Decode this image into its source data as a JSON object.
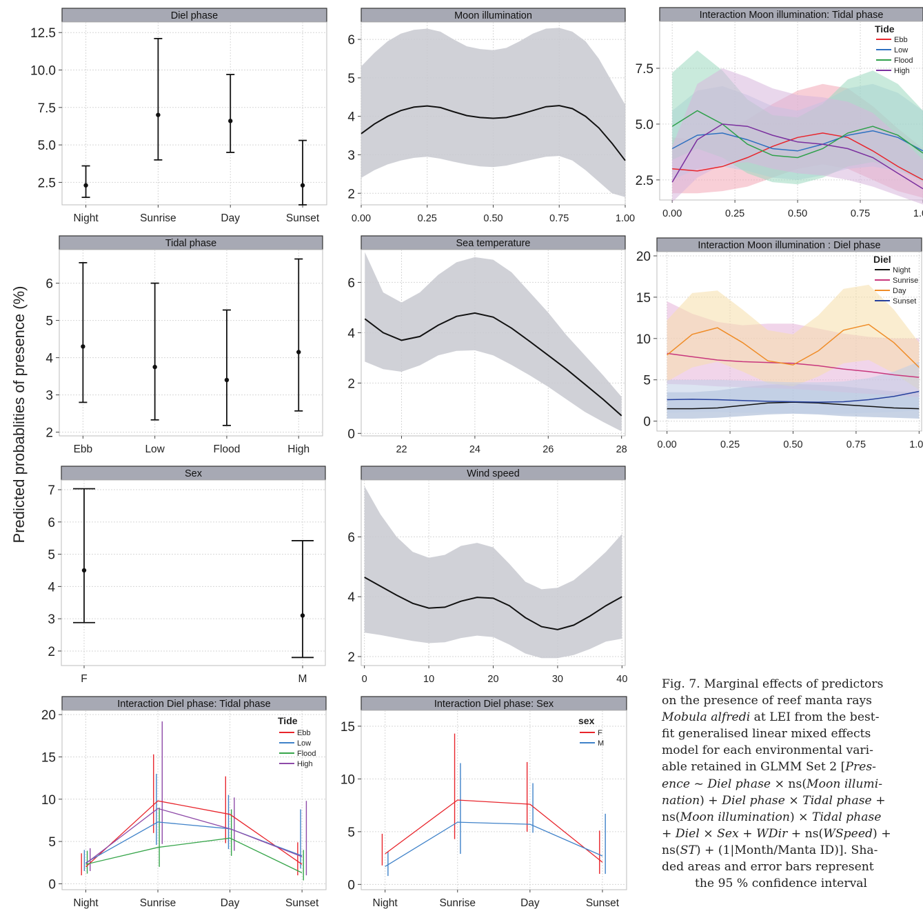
{
  "y_axis_label": "Predicted probablities of presence (%)",
  "caption_lines": [
    {
      "html": "Fig. 7. Marginal effects of predictors"
    },
    {
      "html": "on the presence of reef manta rays"
    },
    {
      "html": "<i>Mobula alfredi</i> at LEI from the best-"
    },
    {
      "html": "fit generalised linear mixed effects"
    },
    {
      "html": "model for each environmental vari-"
    },
    {
      "html": "able retained in GLMM Set 2 [<i>Pres-</i>"
    },
    {
      "html": "<i>ence</i> ~ <i>Diel phase</i> × ns(<i>Moon illumi-</i>"
    },
    {
      "html": "<i>nation</i>) + <i>Diel phase</i> × <i>Tidal phase</i> +"
    },
    {
      "html": "ns(<i>Moon illumination</i>) × <i>Tidal phase</i>"
    },
    {
      "html": "+ <i>Diel</i> × <i>Sex</i> + <i>WDir</i> + ns(<i>WSpeed</i>) +"
    },
    {
      "html": "ns(<i>ST</i>) + (1|Month/Manta ID)]. Sha-"
    },
    {
      "html": "ded areas and error bars represent"
    },
    {
      "html": "the 95 % confidence interval",
      "last": true
    }
  ],
  "chart_data": [
    {
      "id": "diel",
      "type": "errorbar",
      "title": "Diel phase",
      "categories": [
        "Night",
        "Sunrise",
        "Day",
        "Sunset"
      ],
      "values": [
        2.3,
        7.0,
        6.6,
        2.3
      ],
      "lower": [
        1.5,
        4.0,
        4.5,
        1.0
      ],
      "upper": [
        3.6,
        12.1,
        9.7,
        5.3
      ],
      "ylim": [
        1.0,
        13.2
      ],
      "yticks": [
        2.5,
        5.0,
        7.5,
        10.0,
        12.5
      ]
    },
    {
      "id": "moon",
      "type": "line",
      "title": "Moon illumination",
      "x": [
        0.0,
        0.05,
        0.1,
        0.15,
        0.2,
        0.25,
        0.3,
        0.35,
        0.4,
        0.45,
        0.5,
        0.55,
        0.6,
        0.65,
        0.7,
        0.75,
        0.8,
        0.85,
        0.9,
        0.95,
        1.0
      ],
      "y": [
        3.55,
        3.8,
        4.0,
        4.15,
        4.24,
        4.27,
        4.23,
        4.12,
        4.02,
        3.97,
        3.95,
        3.97,
        4.05,
        4.15,
        4.25,
        4.28,
        4.2,
        4.0,
        3.7,
        3.3,
        2.85
      ],
      "lower": [
        2.4,
        2.6,
        2.75,
        2.85,
        2.92,
        2.95,
        2.9,
        2.82,
        2.75,
        2.7,
        2.68,
        2.72,
        2.8,
        2.88,
        2.95,
        2.97,
        2.85,
        2.6,
        2.3,
        2.0,
        1.9
      ],
      "upper": [
        5.3,
        5.65,
        5.95,
        6.15,
        6.25,
        6.28,
        6.2,
        6.0,
        5.82,
        5.75,
        5.72,
        5.78,
        5.95,
        6.15,
        6.28,
        6.3,
        6.2,
        5.95,
        5.5,
        4.9,
        4.3
      ],
      "xlim": [
        0.0,
        1.0
      ],
      "ylim": [
        1.7,
        6.45
      ],
      "xticks": [
        0.0,
        0.25,
        0.5,
        0.75,
        1.0
      ],
      "xticklabels": [
        "0.00",
        "0.25",
        "0.50",
        "0.75",
        "1.00"
      ],
      "yticks": [
        2,
        3,
        4,
        5,
        6
      ]
    },
    {
      "id": "intmoontide",
      "type": "line",
      "title": "Interaction Moon illumination: Tidal phase",
      "legend_title": "Tide",
      "xlim": [
        -0.05,
        1.0
      ],
      "ylim": [
        1.6,
        9.6
      ],
      "xticks": [
        0.0,
        0.25,
        0.5,
        0.75,
        1.0
      ],
      "xticklabels": [
        "0.00",
        "0.25",
        "0.50",
        "0.75",
        "1.00"
      ],
      "yticks": [
        2.5,
        5.0,
        7.5
      ],
      "x": [
        0.0,
        0.1,
        0.2,
        0.3,
        0.4,
        0.5,
        0.6,
        0.7,
        0.8,
        0.9,
        1.0
      ],
      "series": [
        {
          "name": "Ebb",
          "color": "#e8242b",
          "band": "#f2a8b7",
          "y": [
            3.0,
            2.9,
            3.1,
            3.5,
            4.0,
            4.4,
            4.6,
            4.4,
            3.8,
            3.1,
            2.5
          ],
          "lower": [
            1.9,
            1.9,
            2.0,
            2.2,
            2.6,
            3.0,
            3.2,
            3.0,
            2.5,
            2.0,
            1.7
          ],
          "upper": [
            4.4,
            4.3,
            4.6,
            5.2,
            5.9,
            6.5,
            6.8,
            6.6,
            5.8,
            4.8,
            3.9
          ]
        },
        {
          "name": "Low",
          "color": "#2c6fc0",
          "band": "#b9cde8",
          "y": [
            3.9,
            4.5,
            4.6,
            4.3,
            3.9,
            3.8,
            4.1,
            4.5,
            4.7,
            4.4,
            3.8
          ],
          "lower": [
            2.5,
            3.0,
            3.1,
            2.9,
            2.6,
            2.5,
            2.7,
            3.0,
            3.1,
            2.9,
            2.5
          ],
          "upper": [
            5.6,
            6.5,
            6.7,
            6.3,
            5.8,
            5.6,
            6.0,
            6.6,
            6.8,
            6.4,
            5.6
          ]
        },
        {
          "name": "Flood",
          "color": "#2ea04a",
          "band": "#9cd8c0",
          "y": [
            4.9,
            5.6,
            5.0,
            4.1,
            3.6,
            3.5,
            3.9,
            4.6,
            4.9,
            4.5,
            3.7
          ],
          "lower": [
            3.4,
            3.9,
            3.5,
            2.8,
            2.4,
            2.3,
            2.6,
            3.1,
            3.3,
            3.0,
            2.4
          ],
          "upper": [
            7.3,
            8.3,
            7.4,
            6.1,
            5.4,
            5.3,
            5.9,
            7.0,
            7.4,
            6.8,
            5.6
          ]
        },
        {
          "name": "High",
          "color": "#7a2f9e",
          "band": "#d7b6dd",
          "y": [
            2.4,
            4.3,
            5.0,
            4.9,
            4.5,
            4.2,
            4.1,
            3.9,
            3.5,
            2.8,
            2.1
          ],
          "lower": [
            1.5,
            2.6,
            3.2,
            3.3,
            3.0,
            2.8,
            2.7,
            2.5,
            2.2,
            1.8,
            1.4
          ],
          "upper": [
            4.0,
            6.8,
            7.5,
            7.1,
            6.6,
            6.3,
            6.2,
            6.0,
            5.5,
            4.5,
            3.4
          ]
        }
      ]
    },
    {
      "id": "tidal",
      "type": "errorbar",
      "title": "Tidal phase",
      "categories": [
        "Ebb",
        "Low",
        "Flood",
        "High"
      ],
      "values": [
        4.3,
        3.75,
        3.4,
        4.15
      ],
      "lower": [
        2.8,
        2.33,
        2.18,
        2.57
      ],
      "upper": [
        6.55,
        6.0,
        5.28,
        6.65
      ],
      "ylim": [
        1.9,
        6.9
      ],
      "yticks": [
        2,
        3,
        4,
        5,
        6
      ]
    },
    {
      "id": "seatemp",
      "type": "line",
      "title": "Sea temperature",
      "x": [
        21.0,
        21.5,
        22.0,
        22.5,
        23.0,
        23.5,
        24.0,
        24.5,
        25.0,
        25.5,
        26.0,
        26.5,
        27.0,
        27.5,
        28.0
      ],
      "y": [
        4.55,
        4.0,
        3.7,
        3.85,
        4.3,
        4.65,
        4.78,
        4.62,
        4.18,
        3.65,
        3.1,
        2.55,
        1.95,
        1.35,
        0.7
      ],
      "lower": [
        2.85,
        2.55,
        2.45,
        2.7,
        3.1,
        3.28,
        3.3,
        3.1,
        2.72,
        2.3,
        1.85,
        1.35,
        0.85,
        0.45,
        0.08
      ],
      "upper": [
        7.2,
        5.6,
        5.2,
        5.6,
        6.3,
        6.8,
        7.0,
        6.9,
        6.4,
        5.6,
        4.8,
        3.9,
        3.1,
        2.3,
        1.45
      ],
      "xlim": [
        20.9,
        28.1
      ],
      "ylim": [
        -0.1,
        7.3
      ],
      "xticks": [
        22,
        24,
        26,
        28
      ],
      "xticklabels": [
        "22",
        "24",
        "26",
        "28"
      ],
      "yticks": [
        0,
        2,
        4,
        6
      ]
    },
    {
      "id": "intmoondiel",
      "type": "line",
      "title": "Interaction Moon illumination : Diel phase",
      "legend_title": "Diel",
      "xlim": [
        -0.04,
        1.01
      ],
      "ylim": [
        -1.2,
        20.5
      ],
      "xticks": [
        0.0,
        0.25,
        0.5,
        0.75,
        1.0
      ],
      "xticklabels": [
        "0.00",
        "0.25",
        "0.50",
        "0.75",
        "1.00"
      ],
      "yticks": [
        0,
        5,
        10,
        15,
        20
      ],
      "x": [
        0.0,
        0.1,
        0.2,
        0.3,
        0.4,
        0.5,
        0.6,
        0.7,
        0.8,
        0.9,
        1.0
      ],
      "series": [
        {
          "name": "Night",
          "color": "#111111",
          "band": "#9aaed0",
          "y": [
            1.5,
            1.5,
            1.6,
            1.9,
            2.2,
            2.3,
            2.2,
            2.0,
            1.8,
            1.6,
            1.5
          ],
          "lower": [
            0.3,
            0.3,
            0.4,
            0.6,
            0.8,
            0.9,
            0.8,
            0.6,
            0.5,
            0.4,
            0.3
          ],
          "upper": [
            3.5,
            3.5,
            3.7,
            4.1,
            4.4,
            4.5,
            4.4,
            4.2,
            3.9,
            3.6,
            3.5
          ]
        },
        {
          "name": "Sunrise",
          "color": "#c8367c",
          "band": "#e6b2d8",
          "y": [
            8.2,
            7.8,
            7.4,
            7.2,
            7.1,
            7.0,
            6.7,
            6.3,
            6.0,
            5.6,
            5.3
          ],
          "lower": [
            4.5,
            4.4,
            4.2,
            4.1,
            4.0,
            3.9,
            3.7,
            3.5,
            3.3,
            3.1,
            2.9
          ],
          "upper": [
            14.5,
            13.0,
            12.0,
            11.6,
            11.8,
            11.8,
            11.2,
            10.6,
            10.2,
            10.0,
            10.0
          ]
        },
        {
          "name": "Day",
          "color": "#ef8c27",
          "band": "#f6dfaa",
          "y": [
            8.0,
            10.5,
            11.3,
            9.5,
            7.3,
            6.8,
            8.5,
            11.0,
            11.7,
            9.5,
            6.5
          ],
          "lower": [
            4.8,
            6.5,
            7.2,
            6.0,
            4.6,
            4.2,
            5.4,
            7.0,
            7.4,
            5.8,
            3.8
          ],
          "upper": [
            12.2,
            15.5,
            15.8,
            13.5,
            11.0,
            10.5,
            12.8,
            16.0,
            16.5,
            13.5,
            9.5
          ]
        },
        {
          "name": "Sunset",
          "color": "#253f9c",
          "band": "#c0cde6",
          "y": [
            2.6,
            2.65,
            2.6,
            2.5,
            2.4,
            2.35,
            2.3,
            2.35,
            2.6,
            3.0,
            3.6
          ],
          "lower": [
            1.0,
            1.1,
            1.1,
            1.0,
            1.0,
            0.9,
            0.9,
            0.9,
            1.0,
            1.1,
            1.3
          ],
          "upper": [
            5.0,
            5.0,
            5.0,
            4.9,
            4.8,
            4.7,
            4.7,
            4.8,
            5.2,
            6.0,
            7.2
          ]
        }
      ]
    },
    {
      "id": "sex",
      "type": "errorbar",
      "title": "Sex",
      "categories": [
        "F",
        "M"
      ],
      "values": [
        4.5,
        3.1
      ],
      "lower": [
        2.88,
        1.8
      ],
      "upper": [
        7.03,
        5.42
      ],
      "ylim": [
        1.55,
        7.3
      ],
      "yticks": [
        2,
        3,
        4,
        5,
        6,
        7
      ]
    },
    {
      "id": "wind",
      "type": "line",
      "title": "Wind speed",
      "x": [
        0,
        2.5,
        5,
        7.5,
        10,
        12.5,
        15,
        17.5,
        20,
        22.5,
        25,
        27.5,
        30,
        32.5,
        35,
        37.5,
        40
      ],
      "y": [
        4.65,
        4.35,
        4.05,
        3.78,
        3.62,
        3.65,
        3.85,
        3.98,
        3.95,
        3.7,
        3.3,
        3.0,
        2.9,
        3.05,
        3.35,
        3.7,
        4.0
      ],
      "lower": [
        2.8,
        2.72,
        2.62,
        2.52,
        2.45,
        2.48,
        2.62,
        2.7,
        2.65,
        2.4,
        2.1,
        1.95,
        1.95,
        2.05,
        2.25,
        2.5,
        2.6
      ],
      "upper": [
        7.7,
        6.75,
        6.0,
        5.5,
        5.3,
        5.4,
        5.7,
        5.8,
        5.65,
        5.1,
        4.5,
        4.25,
        4.3,
        4.55,
        5.0,
        5.5,
        6.1
      ],
      "xlim": [
        -0.5,
        40.5
      ],
      "ylim": [
        1.7,
        7.9
      ],
      "xticks": [
        0,
        10,
        20,
        30,
        40
      ],
      "xticklabels": [
        "0",
        "10",
        "20",
        "30",
        "40"
      ],
      "yticks": [
        2,
        4,
        6
      ]
    },
    {
      "id": "intdieltide",
      "type": "interaction",
      "title": "Interaction Diel phase: Tidal phase",
      "legend_title": "Tide",
      "categories": [
        "Night",
        "Sunrise",
        "Day",
        "Sunset"
      ],
      "ylim": [
        -0.7,
        20.5
      ],
      "yticks": [
        0,
        5,
        10,
        15,
        20
      ],
      "offsets": [
        -0.06,
        -0.02,
        0.02,
        0.06
      ],
      "series": [
        {
          "name": "Ebb",
          "color": "#e8242b",
          "values": [
            2.0,
            9.8,
            8.2,
            2.3
          ],
          "lower": [
            1.0,
            6.0,
            4.8,
            1.0
          ],
          "upper": [
            3.6,
            15.3,
            12.7,
            4.9
          ]
        },
        {
          "name": "Low",
          "color": "#3f82c9",
          "values": [
            2.5,
            7.3,
            6.5,
            3.3
          ],
          "lower": [
            1.5,
            4.6,
            4.1,
            1.8
          ],
          "upper": [
            4.0,
            13.0,
            10.5,
            8.8
          ]
        },
        {
          "name": "Flood",
          "color": "#36a54a",
          "values": [
            2.3,
            4.3,
            5.4,
            1.3
          ],
          "lower": [
            1.2,
            2.0,
            3.3,
            0.4
          ],
          "upper": [
            3.9,
            9.0,
            8.8,
            4.0
          ]
        },
        {
          "name": "High",
          "color": "#8e4aa8",
          "values": [
            2.4,
            8.9,
            6.5,
            3.2
          ],
          "lower": [
            1.5,
            4.7,
            3.9,
            1.0
          ],
          "upper": [
            4.2,
            19.2,
            10.2,
            9.8
          ]
        }
      ]
    },
    {
      "id": "intdielsex",
      "type": "interaction",
      "title": "Interaction Diel phase: Sex",
      "legend_title": "sex",
      "categories": [
        "Night",
        "Sunrise",
        "Day",
        "Sunset"
      ],
      "ylim": [
        -0.5,
        16.5
      ],
      "yticks": [
        0,
        5,
        10,
        15
      ],
      "offsets": [
        -0.04,
        0.04
      ],
      "series": [
        {
          "name": "F",
          "color": "#e8242b",
          "values": [
            2.9,
            8.0,
            7.6,
            2.1
          ],
          "lower": [
            1.8,
            4.3,
            5.0,
            1.0
          ],
          "upper": [
            4.8,
            14.3,
            11.6,
            5.1
          ]
        },
        {
          "name": "M",
          "color": "#3f82c9",
          "values": [
            1.7,
            5.9,
            5.7,
            2.7
          ],
          "lower": [
            0.8,
            2.9,
            4.9,
            1.0
          ],
          "upper": [
            3.1,
            11.5,
            9.6,
            6.7
          ]
        }
      ]
    }
  ]
}
